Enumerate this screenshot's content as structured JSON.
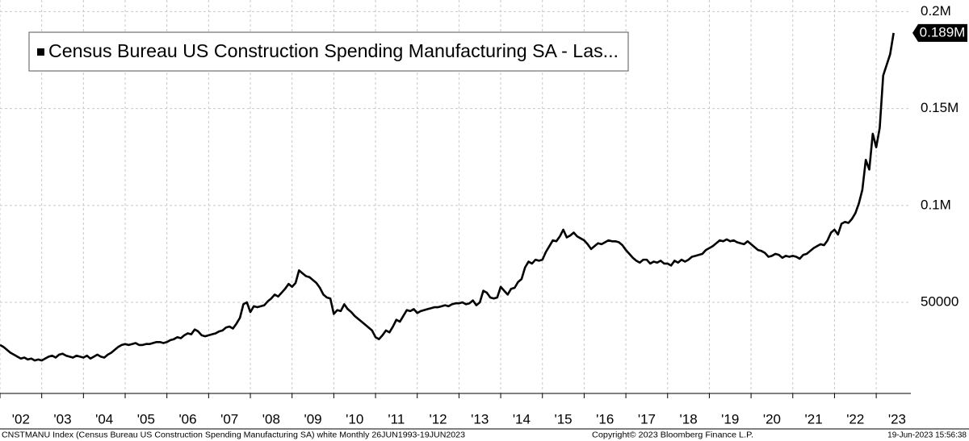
{
  "chart_data": {
    "type": "line",
    "x": [
      "2002-01",
      "2002-02",
      "2002-03",
      "2002-04",
      "2002-05",
      "2002-06",
      "2002-07",
      "2002-08",
      "2002-09",
      "2002-10",
      "2002-11",
      "2002-12",
      "2003-01",
      "2003-02",
      "2003-03",
      "2003-04",
      "2003-05",
      "2003-06",
      "2003-07",
      "2003-08",
      "2003-09",
      "2003-10",
      "2003-11",
      "2003-12",
      "2004-01",
      "2004-02",
      "2004-03",
      "2004-04",
      "2004-05",
      "2004-06",
      "2004-07",
      "2004-08",
      "2004-09",
      "2004-10",
      "2004-11",
      "2004-12",
      "2005-01",
      "2005-02",
      "2005-03",
      "2005-04",
      "2005-05",
      "2005-06",
      "2005-07",
      "2005-08",
      "2005-09",
      "2005-10",
      "2005-11",
      "2005-12",
      "2006-01",
      "2006-02",
      "2006-03",
      "2006-04",
      "2006-05",
      "2006-06",
      "2006-07",
      "2006-08",
      "2006-09",
      "2006-10",
      "2006-11",
      "2006-12",
      "2007-01",
      "2007-02",
      "2007-03",
      "2007-04",
      "2007-05",
      "2007-06",
      "2007-07",
      "2007-08",
      "2007-09",
      "2007-10",
      "2007-11",
      "2007-12",
      "2008-01",
      "2008-02",
      "2008-03",
      "2008-04",
      "2008-05",
      "2008-06",
      "2008-07",
      "2008-08",
      "2008-09",
      "2008-10",
      "2008-11",
      "2008-12",
      "2009-01",
      "2009-02",
      "2009-03",
      "2009-04",
      "2009-05",
      "2009-06",
      "2009-07",
      "2009-08",
      "2009-09",
      "2009-10",
      "2009-11",
      "2009-12",
      "2010-01",
      "2010-02",
      "2010-03",
      "2010-04",
      "2010-05",
      "2010-06",
      "2010-07",
      "2010-08",
      "2010-09",
      "2010-10",
      "2010-11",
      "2010-12",
      "2011-01",
      "2011-02",
      "2011-03",
      "2011-04",
      "2011-05",
      "2011-06",
      "2011-07",
      "2011-08",
      "2011-09",
      "2011-10",
      "2011-11",
      "2011-12",
      "2012-01",
      "2012-02",
      "2012-03",
      "2012-04",
      "2012-05",
      "2012-06",
      "2012-07",
      "2012-08",
      "2012-09",
      "2012-10",
      "2012-11",
      "2012-12",
      "2013-01",
      "2013-02",
      "2013-03",
      "2013-04",
      "2013-05",
      "2013-06",
      "2013-07",
      "2013-08",
      "2013-09",
      "2013-10",
      "2013-11",
      "2013-12",
      "2014-01",
      "2014-02",
      "2014-03",
      "2014-04",
      "2014-05",
      "2014-06",
      "2014-07",
      "2014-08",
      "2014-09",
      "2014-10",
      "2014-11",
      "2014-12",
      "2015-01",
      "2015-02",
      "2015-03",
      "2015-04",
      "2015-05",
      "2015-06",
      "2015-07",
      "2015-08",
      "2015-09",
      "2015-10",
      "2015-11",
      "2015-12",
      "2016-01",
      "2016-02",
      "2016-03",
      "2016-04",
      "2016-05",
      "2016-06",
      "2016-07",
      "2016-08",
      "2016-09",
      "2016-10",
      "2016-11",
      "2016-12",
      "2017-01",
      "2017-02",
      "2017-03",
      "2017-04",
      "2017-05",
      "2017-06",
      "2017-07",
      "2017-08",
      "2017-09",
      "2017-10",
      "2017-11",
      "2017-12",
      "2018-01",
      "2018-02",
      "2018-03",
      "2018-04",
      "2018-05",
      "2018-06",
      "2018-07",
      "2018-08",
      "2018-09",
      "2018-10",
      "2018-11",
      "2018-12",
      "2019-01",
      "2019-02",
      "2019-03",
      "2019-04",
      "2019-05",
      "2019-06",
      "2019-07",
      "2019-08",
      "2019-09",
      "2019-10",
      "2019-11",
      "2019-12",
      "2020-01",
      "2020-02",
      "2020-03",
      "2020-04",
      "2020-05",
      "2020-06",
      "2020-07",
      "2020-08",
      "2020-09",
      "2020-10",
      "2020-11",
      "2020-12",
      "2021-01",
      "2021-02",
      "2021-03",
      "2021-04",
      "2021-05",
      "2021-06",
      "2021-07",
      "2021-08",
      "2021-09",
      "2021-10",
      "2021-11",
      "2021-12",
      "2022-01",
      "2022-02",
      "2022-03",
      "2022-04",
      "2022-05",
      "2022-06",
      "2022-07",
      "2022-08",
      "2022-09",
      "2022-10",
      "2022-11",
      "2022-12",
      "2023-01",
      "2023-02",
      "2023-03",
      "2023-04",
      "2023-05",
      "2023-06"
    ],
    "series": [
      {
        "name": "Census Bureau US Construction Spending Manufacturing SA - Las...",
        "color": "#000000",
        "values": [
          28000,
          27000,
          25500,
          24000,
          23000,
          22000,
          21000,
          21500,
          20500,
          21000,
          20000,
          20500,
          20000,
          21000,
          22000,
          22500,
          21500,
          23000,
          23500,
          22500,
          22000,
          21500,
          22500,
          22000,
          21500,
          22500,
          21000,
          22000,
          23000,
          22000,
          21500,
          23000,
          24000,
          25500,
          27000,
          28000,
          28500,
          28000,
          28500,
          29000,
          28000,
          28000,
          28500,
          28500,
          29000,
          29500,
          29500,
          29000,
          29500,
          30500,
          31000,
          32000,
          31500,
          33000,
          34000,
          33500,
          36000,
          35000,
          33000,
          32500,
          33000,
          33500,
          34000,
          35000,
          35500,
          37000,
          37500,
          36500,
          39000,
          42000,
          49000,
          50000,
          45000,
          48000,
          47500,
          48000,
          48500,
          50500,
          52000,
          54000,
          53000,
          55000,
          57000,
          59500,
          58000,
          60000,
          66500,
          65000,
          63500,
          63000,
          61500,
          60000,
          57500,
          54000,
          52500,
          52000,
          44000,
          46000,
          45500,
          49000,
          46500,
          45000,
          43000,
          41500,
          40000,
          38500,
          37000,
          35500,
          32000,
          31000,
          33000,
          35500,
          34500,
          37500,
          41000,
          40000,
          43000,
          46000,
          45500,
          46500,
          44500,
          45500,
          46000,
          46500,
          47000,
          47500,
          47500,
          48000,
          48500,
          48000,
          49000,
          49500,
          49500,
          50000,
          49000,
          49500,
          51000,
          48500,
          50000,
          56000,
          55000,
          52500,
          52000,
          52500,
          58000,
          56000,
          54000,
          57000,
          57500,
          60500,
          62000,
          68000,
          71000,
          70000,
          72000,
          71500,
          72000,
          76000,
          79000,
          82000,
          81500,
          84000,
          87500,
          83500,
          84500,
          86000,
          84000,
          83000,
          82000,
          80000,
          77500,
          79000,
          80500,
          80000,
          81000,
          82000,
          81500,
          81500,
          81000,
          79500,
          77000,
          75000,
          73000,
          71500,
          70500,
          72000,
          72000,
          70000,
          71000,
          70500,
          71500,
          70000,
          70000,
          69000,
          71500,
          70500,
          72000,
          71000,
          72000,
          73500,
          74000,
          74500,
          75000,
          77000,
          78000,
          79000,
          80500,
          82000,
          81500,
          82500,
          81500,
          82000,
          81000,
          80500,
          80000,
          81500,
          80000,
          78500,
          77000,
          76500,
          75500,
          73500,
          74000,
          75000,
          74500,
          73000,
          74000,
          73500,
          74000,
          73500,
          72500,
          74500,
          75000,
          76500,
          78000,
          79000,
          80000,
          79500,
          82000,
          86000,
          87500,
          85000,
          90500,
          91500,
          91000,
          93000,
          96000,
          101000,
          108000,
          123500,
          118500,
          137000,
          130000,
          140000,
          167000,
          172500,
          178000,
          189000
        ]
      }
    ],
    "last_label": {
      "value": 189000,
      "label": "0.189M"
    },
    "xlim": [
      2002,
      2023.83
    ],
    "xticks": [
      {
        "value": 2002,
        "label": "'02"
      },
      {
        "value": 2003,
        "label": "'03"
      },
      {
        "value": 2004,
        "label": "'04"
      },
      {
        "value": 2005,
        "label": "'05"
      },
      {
        "value": 2006,
        "label": "'06"
      },
      {
        "value": 2007,
        "label": "'07"
      },
      {
        "value": 2008,
        "label": "'08"
      },
      {
        "value": 2009,
        "label": "'09"
      },
      {
        "value": 2010,
        "label": "'10"
      },
      {
        "value": 2011,
        "label": "'11"
      },
      {
        "value": 2012,
        "label": "'12"
      },
      {
        "value": 2013,
        "label": "'13"
      },
      {
        "value": 2014,
        "label": "'14"
      },
      {
        "value": 2015,
        "label": "'15"
      },
      {
        "value": 2016,
        "label": "'16"
      },
      {
        "value": 2017,
        "label": "'17"
      },
      {
        "value": 2018,
        "label": "'18"
      },
      {
        "value": 2019,
        "label": "'19"
      },
      {
        "value": 2020,
        "label": "'20"
      },
      {
        "value": 2021,
        "label": "'21"
      },
      {
        "value": 2022,
        "label": "'22"
      },
      {
        "value": 2023,
        "label": "'23"
      }
    ],
    "ylim": [
      3000,
      206000
    ],
    "yticks": [
      50000,
      {
        "value": 100000,
        "label": "0.1M"
      },
      {
        "value": 150000,
        "label": "0.15M"
      },
      {
        "value": 200000,
        "label": "0.2M"
      }
    ],
    "grid": true,
    "footer": {
      "left": "CNSTMANU Index (Census Bureau US Construction Spending Manufacturing SA) white  Monthly 26JUN1993-19JUN2023",
      "center": "Copyright© 2023 Bloomberg Finance L.P.",
      "right": "19-Jun-2023 15:56:38"
    }
  }
}
